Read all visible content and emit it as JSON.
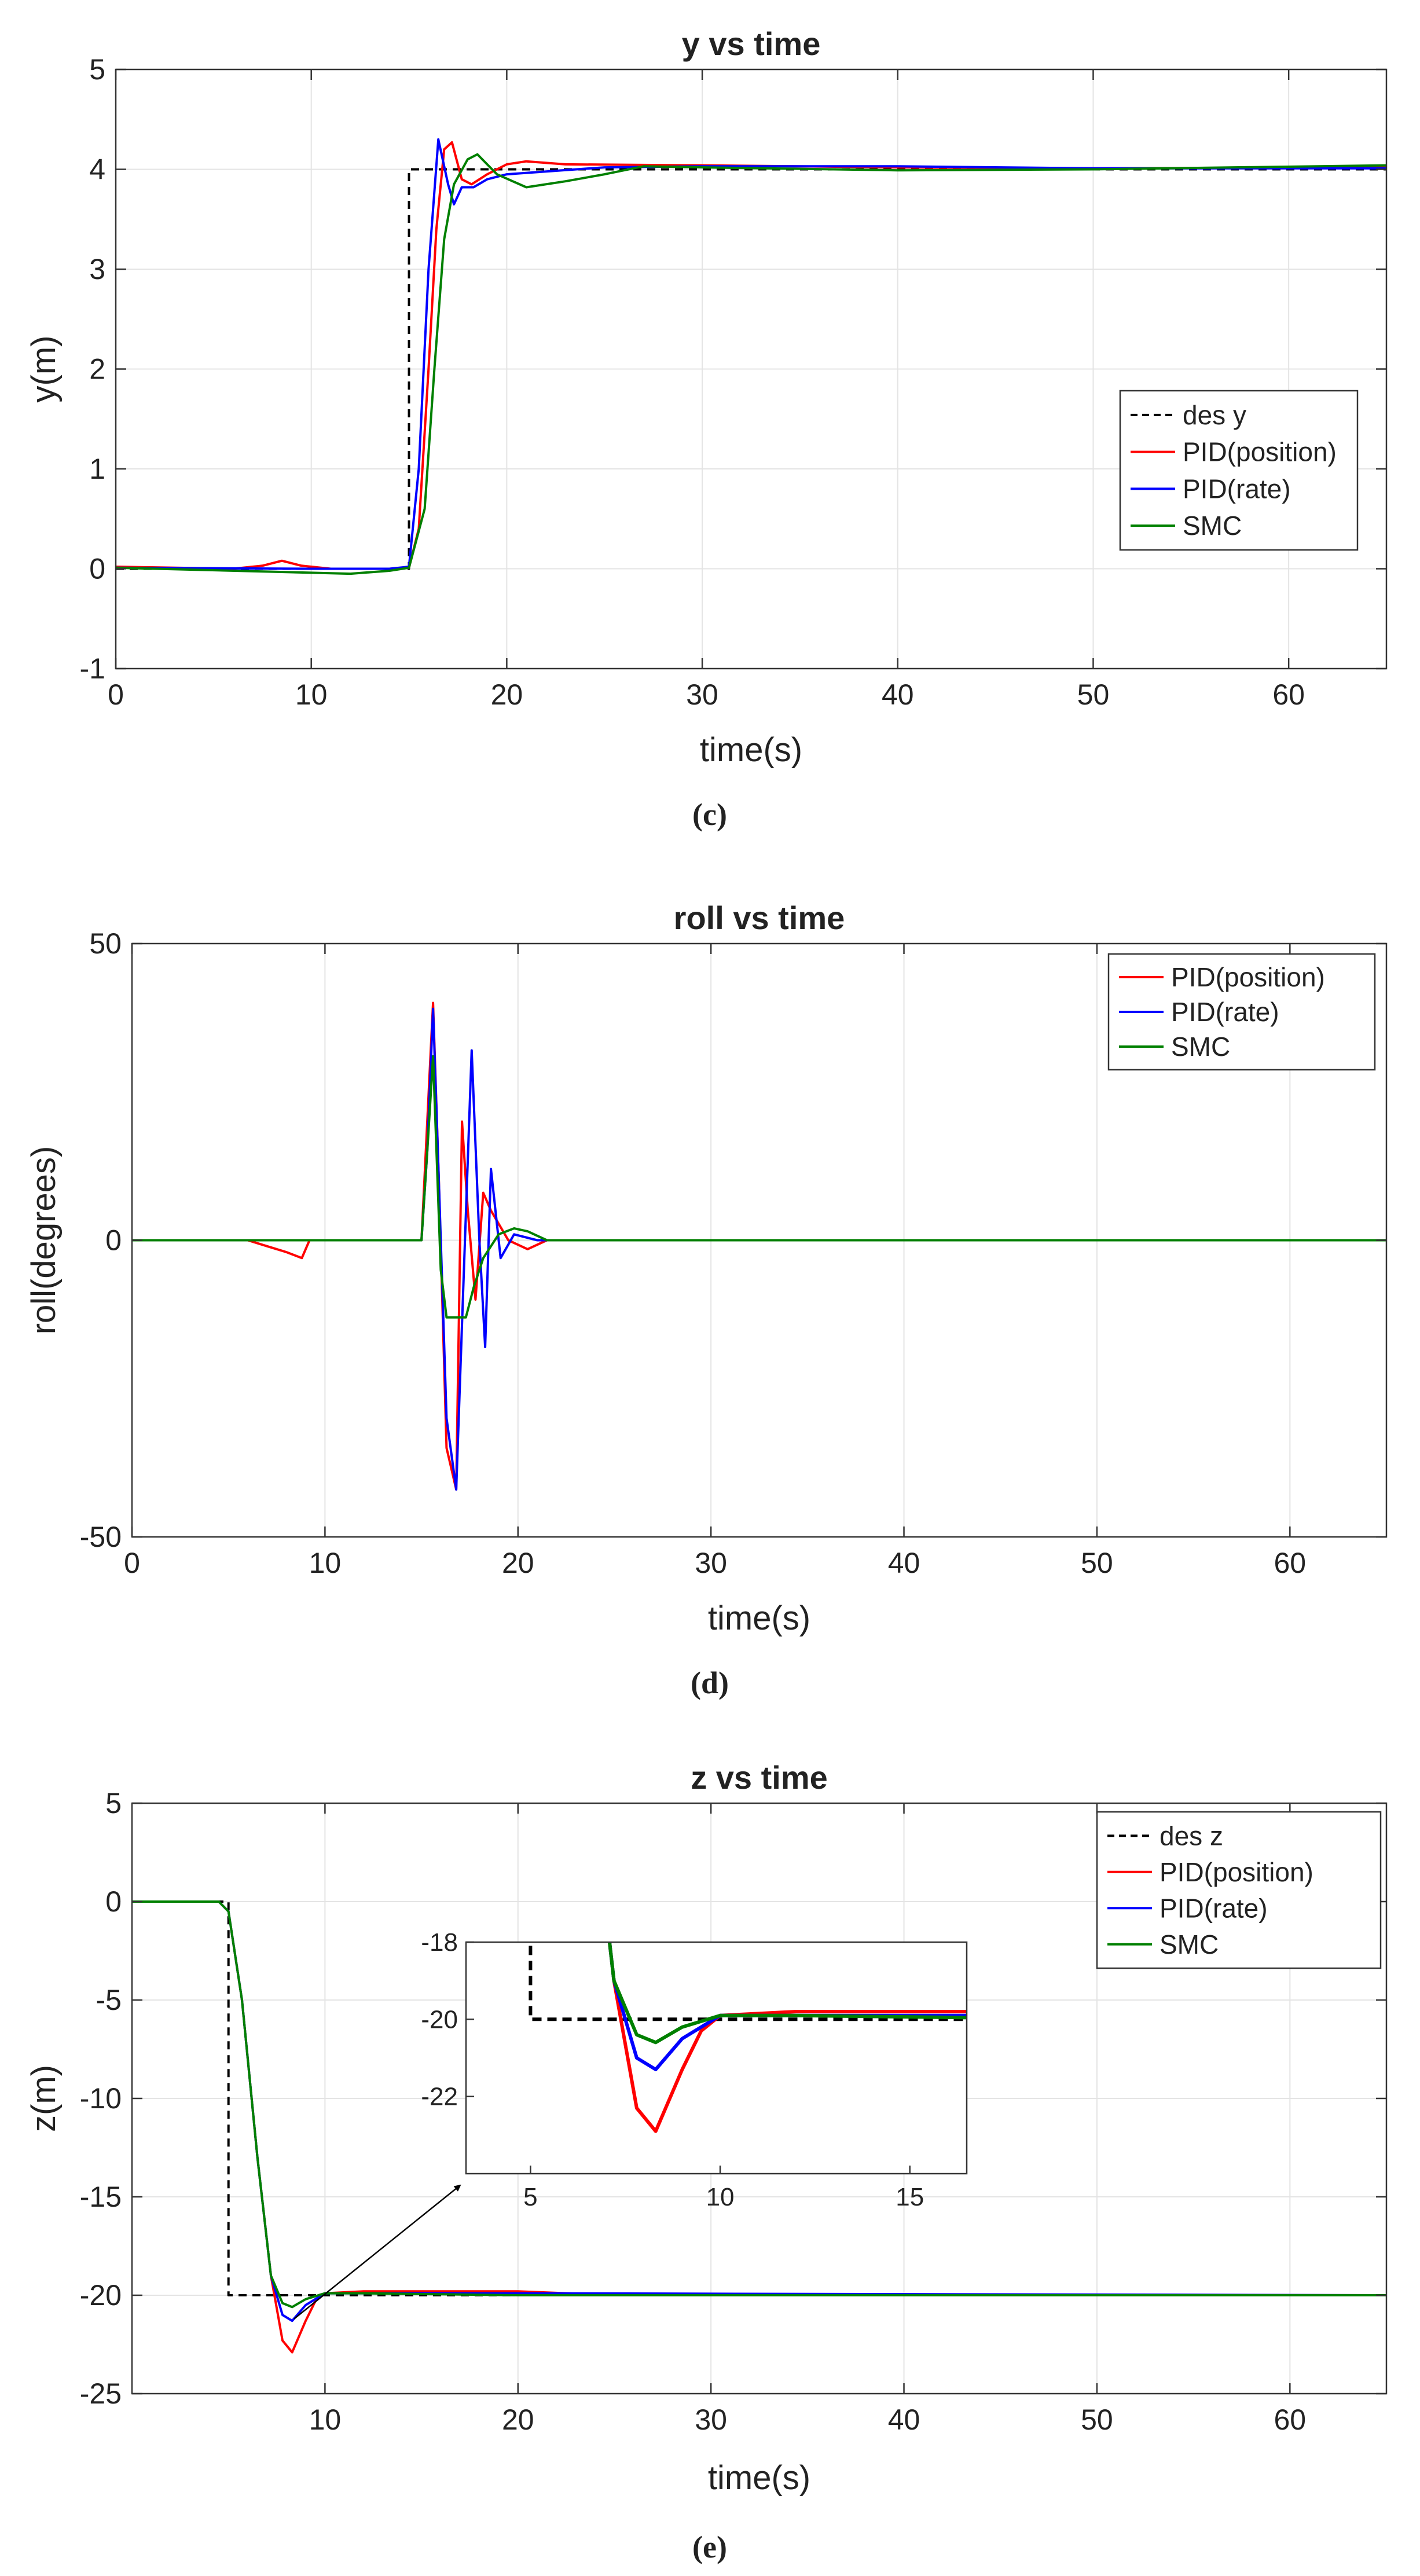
{
  "chart_data": [
    {
      "type": "line",
      "title": "y vs time",
      "xlabel": "time(s)",
      "ylabel": "y(m)",
      "caption": "(c)",
      "xlim": [
        0,
        65
      ],
      "ylim": [
        -1,
        5
      ],
      "xticks": [
        0,
        10,
        20,
        30,
        40,
        50,
        60
      ],
      "yticks": [
        -1,
        0,
        1,
        2,
        3,
        4,
        5
      ],
      "grid": true,
      "legend_position": "middle-right",
      "series": [
        {
          "name": "des y",
          "color": "#000000",
          "dash": "dashed",
          "points": [
            [
              0,
              0
            ],
            [
              15,
              0
            ],
            [
              15,
              4
            ],
            [
              65,
              4
            ]
          ]
        },
        {
          "name": "PID(position)",
          "color": "#ff0000",
          "points": [
            [
              0,
              0.02
            ],
            [
              6,
              0
            ],
            [
              7.5,
              0.03
            ],
            [
              8.5,
              0.08
            ],
            [
              9.5,
              0.03
            ],
            [
              11,
              0
            ],
            [
              14,
              0
            ],
            [
              15,
              0.01
            ],
            [
              15.5,
              0.4
            ],
            [
              16,
              2.0
            ],
            [
              16.4,
              3.4
            ],
            [
              16.8,
              4.2
            ],
            [
              17.2,
              4.27
            ],
            [
              17.7,
              3.9
            ],
            [
              18.2,
              3.85
            ],
            [
              19,
              3.95
            ],
            [
              20,
              4.05
            ],
            [
              21,
              4.08
            ],
            [
              23,
              4.05
            ],
            [
              30,
              4.04
            ],
            [
              40,
              4.02
            ],
            [
              50,
              4.01
            ],
            [
              65,
              4.02
            ]
          ]
        },
        {
          "name": "PID(rate)",
          "color": "#0000ff",
          "points": [
            [
              0,
              0.01
            ],
            [
              10,
              0
            ],
            [
              14,
              0
            ],
            [
              15,
              0.02
            ],
            [
              15.5,
              1.0
            ],
            [
              16,
              3.0
            ],
            [
              16.5,
              4.3
            ],
            [
              17,
              3.85
            ],
            [
              17.3,
              3.65
            ],
            [
              17.7,
              3.82
            ],
            [
              18.3,
              3.82
            ],
            [
              19,
              3.9
            ],
            [
              20,
              3.95
            ],
            [
              25,
              4.02
            ],
            [
              30,
              4.03
            ],
            [
              40,
              4.03
            ],
            [
              50,
              4.01
            ],
            [
              65,
              4.01
            ]
          ]
        },
        {
          "name": "SMC",
          "color": "#008000",
          "points": [
            [
              0,
              0.01
            ],
            [
              10,
              -0.04
            ],
            [
              12,
              -0.05
            ],
            [
              14,
              -0.02
            ],
            [
              15,
              0.01
            ],
            [
              15.8,
              0.6
            ],
            [
              16.3,
              2.0
            ],
            [
              16.8,
              3.3
            ],
            [
              17.3,
              3.85
            ],
            [
              18,
              4.1
            ],
            [
              18.5,
              4.15
            ],
            [
              19.5,
              3.95
            ],
            [
              21,
              3.82
            ],
            [
              23,
              3.88
            ],
            [
              25,
              3.95
            ],
            [
              27,
              4.03
            ],
            [
              30,
              4.02
            ],
            [
              40,
              3.99
            ],
            [
              50,
              4.0
            ],
            [
              65,
              4.04
            ]
          ]
        }
      ]
    },
    {
      "type": "line",
      "title": "roll vs time",
      "xlabel": "time(s)",
      "ylabel": "roll(degrees)",
      "caption": "(d)",
      "xlim": [
        0,
        65
      ],
      "ylim": [
        -50,
        50
      ],
      "xticks": [
        0,
        10,
        20,
        30,
        40,
        50,
        60
      ],
      "yticks": [
        -50,
        0,
        50
      ],
      "grid": true,
      "legend_position": "top-right",
      "series": [
        {
          "name": "PID(position)",
          "color": "#ff0000",
          "points": [
            [
              0,
              0
            ],
            [
              6,
              0
            ],
            [
              7,
              -1
            ],
            [
              8,
              -2
            ],
            [
              8.8,
              -3
            ],
            [
              9.2,
              0
            ],
            [
              14,
              0
            ],
            [
              15,
              0
            ],
            [
              15.3,
              20
            ],
            [
              15.6,
              40
            ],
            [
              15.9,
              10
            ],
            [
              16.3,
              -35
            ],
            [
              16.8,
              -42
            ],
            [
              17.1,
              20
            ],
            [
              17.4,
              5
            ],
            [
              17.8,
              -10
            ],
            [
              18.2,
              8
            ],
            [
              18.6,
              5
            ],
            [
              19.5,
              0
            ],
            [
              20.5,
              -1.5
            ],
            [
              21.5,
              0
            ],
            [
              65,
              0
            ]
          ]
        },
        {
          "name": "PID(rate)",
          "color": "#0000ff",
          "points": [
            [
              0,
              0
            ],
            [
              14,
              0
            ],
            [
              15,
              0
            ],
            [
              15.3,
              15
            ],
            [
              15.6,
              39
            ],
            [
              15.9,
              10
            ],
            [
              16.3,
              -30
            ],
            [
              16.8,
              -42
            ],
            [
              17.2,
              -5
            ],
            [
              17.6,
              32
            ],
            [
              18,
              0
            ],
            [
              18.3,
              -18
            ],
            [
              18.6,
              12
            ],
            [
              19.1,
              -3
            ],
            [
              19.8,
              1
            ],
            [
              21,
              0
            ],
            [
              65,
              0
            ]
          ]
        },
        {
          "name": "SMC",
          "color": "#008000",
          "points": [
            [
              0,
              0
            ],
            [
              14,
              0
            ],
            [
              15,
              0
            ],
            [
              15.3,
              15
            ],
            [
              15.6,
              31
            ],
            [
              16,
              -5
            ],
            [
              16.3,
              -13
            ],
            [
              16.8,
              -13
            ],
            [
              17.3,
              -13
            ],
            [
              17.7,
              -8
            ],
            [
              18.2,
              -3
            ],
            [
              19,
              1
            ],
            [
              19.8,
              2
            ],
            [
              20.5,
              1.5
            ],
            [
              21.5,
              0
            ],
            [
              65,
              0
            ]
          ]
        }
      ]
    },
    {
      "type": "line",
      "title": "z vs time",
      "xlabel": "time(s)",
      "ylabel": "z(m)",
      "caption": "(e)",
      "xlim": [
        0,
        65
      ],
      "ylim": [
        -25,
        5
      ],
      "xticks": [
        10,
        20,
        30,
        40,
        50,
        60
      ],
      "yticks": [
        -25,
        -20,
        -15,
        -10,
        -5,
        0,
        5
      ],
      "grid": true,
      "legend_position": "top-right",
      "series": [
        {
          "name": "des z",
          "color": "#000000",
          "dash": "dashed",
          "points": [
            [
              0,
              0
            ],
            [
              5,
              0
            ],
            [
              5,
              -20
            ],
            [
              65,
              -20
            ]
          ]
        },
        {
          "name": "PID(position)",
          "color": "#ff0000",
          "points": [
            [
              0,
              0
            ],
            [
              4.5,
              0
            ],
            [
              5,
              -0.5
            ],
            [
              5.7,
              -5
            ],
            [
              6.5,
              -13
            ],
            [
              7.2,
              -19
            ],
            [
              7.8,
              -22.3
            ],
            [
              8.3,
              -22.9
            ],
            [
              9,
              -21.3
            ],
            [
              9.5,
              -20.3
            ],
            [
              10,
              -19.9
            ],
            [
              12,
              -19.8
            ],
            [
              20,
              -19.8
            ],
            [
              25,
              -20
            ],
            [
              65,
              -20
            ]
          ]
        },
        {
          "name": "PID(rate)",
          "color": "#0000ff",
          "points": [
            [
              0,
              0
            ],
            [
              4.5,
              0
            ],
            [
              5,
              -0.5
            ],
            [
              5.7,
              -5
            ],
            [
              6.5,
              -13
            ],
            [
              7.2,
              -19
            ],
            [
              7.8,
              -21
            ],
            [
              8.3,
              -21.3
            ],
            [
              9,
              -20.5
            ],
            [
              10,
              -19.9
            ],
            [
              12,
              -19.9
            ],
            [
              20,
              -19.9
            ],
            [
              65,
              -20
            ]
          ]
        },
        {
          "name": "SMC",
          "color": "#008000",
          "points": [
            [
              0,
              0
            ],
            [
              4.5,
              0
            ],
            [
              5,
              -0.5
            ],
            [
              5.7,
              -5
            ],
            [
              6.5,
              -13
            ],
            [
              7.2,
              -19
            ],
            [
              7.8,
              -20.4
            ],
            [
              8.3,
              -20.6
            ],
            [
              9,
              -20.2
            ],
            [
              10,
              -19.9
            ],
            [
              12,
              -19.9
            ],
            [
              20,
              -20
            ],
            [
              65,
              -20
            ]
          ]
        }
      ],
      "inset": {
        "xlim": [
          3.3,
          16.5
        ],
        "ylim": [
          -24,
          -18
        ],
        "xticks": [
          5,
          10,
          15
        ],
        "yticks": [
          -22,
          -20,
          -18
        ]
      }
    }
  ]
}
